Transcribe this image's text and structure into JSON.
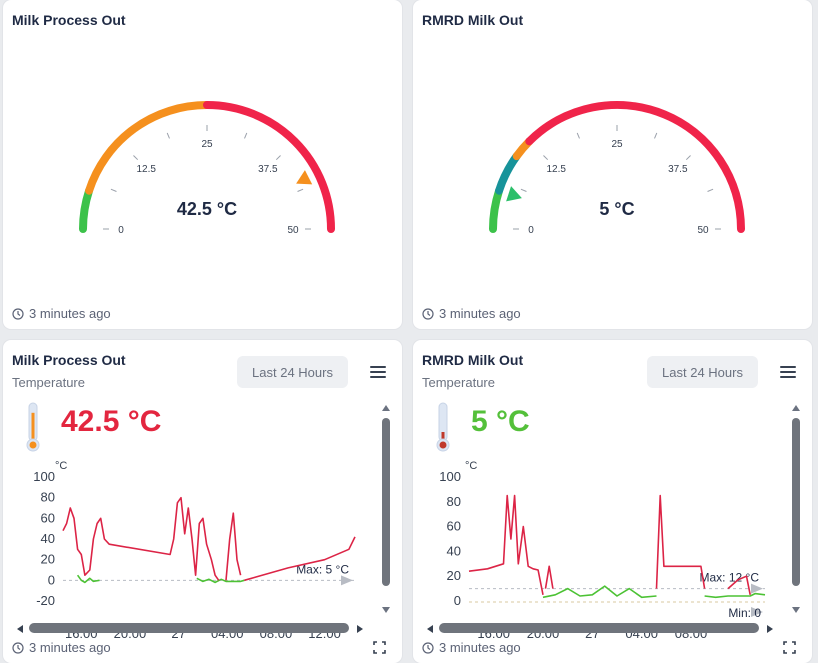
{
  "cards": {
    "gauge1": {
      "title": "Milk Process Out",
      "value_text": "42.5 °C",
      "value": 42.5,
      "range": [
        0,
        50
      ],
      "ticks": [
        "0",
        "12.5",
        "25",
        "37.5",
        "50"
      ],
      "footer": "3 minutes ago",
      "zones": [
        {
          "from": 0,
          "to": 5,
          "color": "#3cc24a"
        },
        {
          "from": 5,
          "to": 25,
          "color": "#f5901e"
        },
        {
          "from": 25,
          "to": 50,
          "color": "#f0244a"
        }
      ],
      "pointer_color": "#f5901e"
    },
    "gauge2": {
      "title": "RMRD Milk Out",
      "value_text": "5 °C",
      "value": 5,
      "range": [
        0,
        50
      ],
      "ticks": [
        "0",
        "12.5",
        "25",
        "37.5",
        "50"
      ],
      "footer": "3 minutes ago",
      "zones": [
        {
          "from": 0,
          "to": 5,
          "color": "#3cc24a"
        },
        {
          "from": 5,
          "to": 10,
          "color": "#17939a"
        },
        {
          "from": 10,
          "to": 12.5,
          "color": "#f5901e"
        },
        {
          "from": 12.5,
          "to": 50,
          "color": "#f0244a"
        }
      ],
      "pointer_color": "#2cbf6a"
    },
    "chart1": {
      "title": "Milk Process Out",
      "subtitle": "Temperature",
      "range_button": "Last 24 Hours",
      "big_value": "42.5 °C",
      "big_value_color": "#e3263f",
      "thermo_color": "#f5901e",
      "thermo_level": 0.85,
      "footer": "3 minutes ago",
      "chart_data": {
        "type": "line",
        "ylabel": "°C",
        "yticks": [
          "100",
          "80",
          "60",
          "40",
          "20",
          "0",
          "-20"
        ],
        "ylim": [
          -20,
          100
        ],
        "xticks": [
          "16:00",
          "20:00",
          "27",
          "04:00",
          "08:00",
          "12:00"
        ],
        "xlim": [
          0,
          24
        ],
        "xtick_values": [
          1.5,
          5.5,
          9.5,
          13.5,
          17.5,
          21.5
        ],
        "max_label": "Max: 5 °C",
        "threshold": 0,
        "series_high": [
          [
            0,
            48
          ],
          [
            0.3,
            55
          ],
          [
            0.6,
            70
          ],
          [
            0.9,
            60
          ],
          [
            1.2,
            30
          ],
          [
            1.5,
            25
          ],
          [
            1.8,
            5
          ],
          [
            2.2,
            10
          ],
          [
            2.5,
            40
          ],
          [
            2.8,
            55
          ],
          [
            3.1,
            60
          ],
          [
            3.4,
            40
          ],
          [
            3.8,
            35
          ],
          [
            8.8,
            25
          ],
          [
            9.1,
            40
          ],
          [
            9.4,
            75
          ],
          [
            9.7,
            80
          ],
          [
            10.0,
            45
          ],
          [
            10.3,
            70
          ],
          [
            10.6,
            40
          ],
          [
            10.9,
            5
          ],
          [
            11.2,
            55
          ],
          [
            11.5,
            60
          ],
          [
            11.8,
            35
          ],
          [
            12.2,
            20
          ],
          [
            12.5,
            5
          ],
          [
            12.8,
            0
          ]
        ],
        "series_high_b": [
          [
            13.4,
            0
          ],
          [
            13.7,
            40
          ],
          [
            14.0,
            65
          ],
          [
            14.3,
            20
          ],
          [
            14.6,
            5
          ]
        ],
        "series_high_c": [
          [
            14.9,
            0
          ],
          [
            18.5,
            12
          ],
          [
            21.5,
            20
          ],
          [
            23.5,
            30
          ],
          [
            24,
            42
          ]
        ],
        "series_low": [
          [
            1.2,
            5
          ],
          [
            1.5,
            0
          ],
          [
            1.8,
            -2
          ],
          [
            2.2,
            2
          ],
          [
            2.5,
            -1
          ],
          [
            3.0,
            0
          ]
        ],
        "series_low_b": [
          [
            11.0,
            2
          ],
          [
            11.5,
            -1
          ],
          [
            12.0,
            1
          ],
          [
            12.5,
            -2
          ],
          [
            13.0,
            1
          ],
          [
            13.4,
            -1
          ],
          [
            14.6,
            -1
          ],
          [
            14.9,
            0
          ]
        ]
      }
    },
    "chart2": {
      "title": "RMRD Milk Out",
      "subtitle": "Temperature",
      "range_button": "Last 24 Hours",
      "big_value": "5 °C",
      "big_value_color": "#54c03a",
      "thermo_color": "#c0392b",
      "thermo_level": 0.25,
      "footer": "3 minutes ago",
      "chart_data": {
        "type": "line",
        "ylabel": "°C",
        "yticks": [
          "100",
          "80",
          "60",
          "40",
          "20",
          "0"
        ],
        "ylim": [
          0,
          100
        ],
        "xticks": [
          "16:00",
          "20:00",
          "27",
          "04:00",
          "08:00"
        ],
        "xlim": [
          0,
          24
        ],
        "xtick_values": [
          2.0,
          6.0,
          10.0,
          14.0,
          18.0
        ],
        "max_label": "Max: 12 °C",
        "min_label": "Min: 0",
        "threshold": 10,
        "series_high": [
          [
            0,
            24
          ],
          [
            1.5,
            26
          ],
          [
            2.8,
            30
          ],
          [
            3.1,
            85
          ],
          [
            3.4,
            50
          ],
          [
            3.7,
            85
          ],
          [
            4.0,
            30
          ],
          [
            4.4,
            60
          ],
          [
            4.8,
            28
          ],
          [
            5.2,
            26
          ],
          [
            5.6,
            25
          ],
          [
            6.0,
            5
          ]
        ],
        "series_high_b": [
          [
            6.2,
            10
          ],
          [
            6.5,
            28
          ],
          [
            6.8,
            10
          ]
        ],
        "series_high_c": [
          [
            15.2,
            10
          ],
          [
            15.5,
            85
          ],
          [
            15.8,
            28
          ],
          [
            18.8,
            28
          ],
          [
            19.1,
            10
          ]
        ],
        "series_high_d": [
          [
            21.0,
            10
          ],
          [
            21.8,
            17
          ],
          [
            22.5,
            20
          ],
          [
            22.8,
            5
          ]
        ],
        "series_low": [
          [
            6.0,
            3
          ],
          [
            7.0,
            5
          ],
          [
            8.0,
            10
          ],
          [
            9.0,
            4
          ],
          [
            10.0,
            5
          ],
          [
            11.0,
            12
          ],
          [
            12.0,
            4
          ],
          [
            13.0,
            10
          ],
          [
            14.0,
            3
          ],
          [
            15.2,
            4
          ]
        ],
        "series_low_b": [
          [
            19.1,
            4
          ],
          [
            20.0,
            3
          ],
          [
            21.0,
            4
          ],
          [
            22.8,
            4
          ],
          [
            23.2,
            6
          ],
          [
            24,
            5
          ]
        ]
      }
    }
  }
}
